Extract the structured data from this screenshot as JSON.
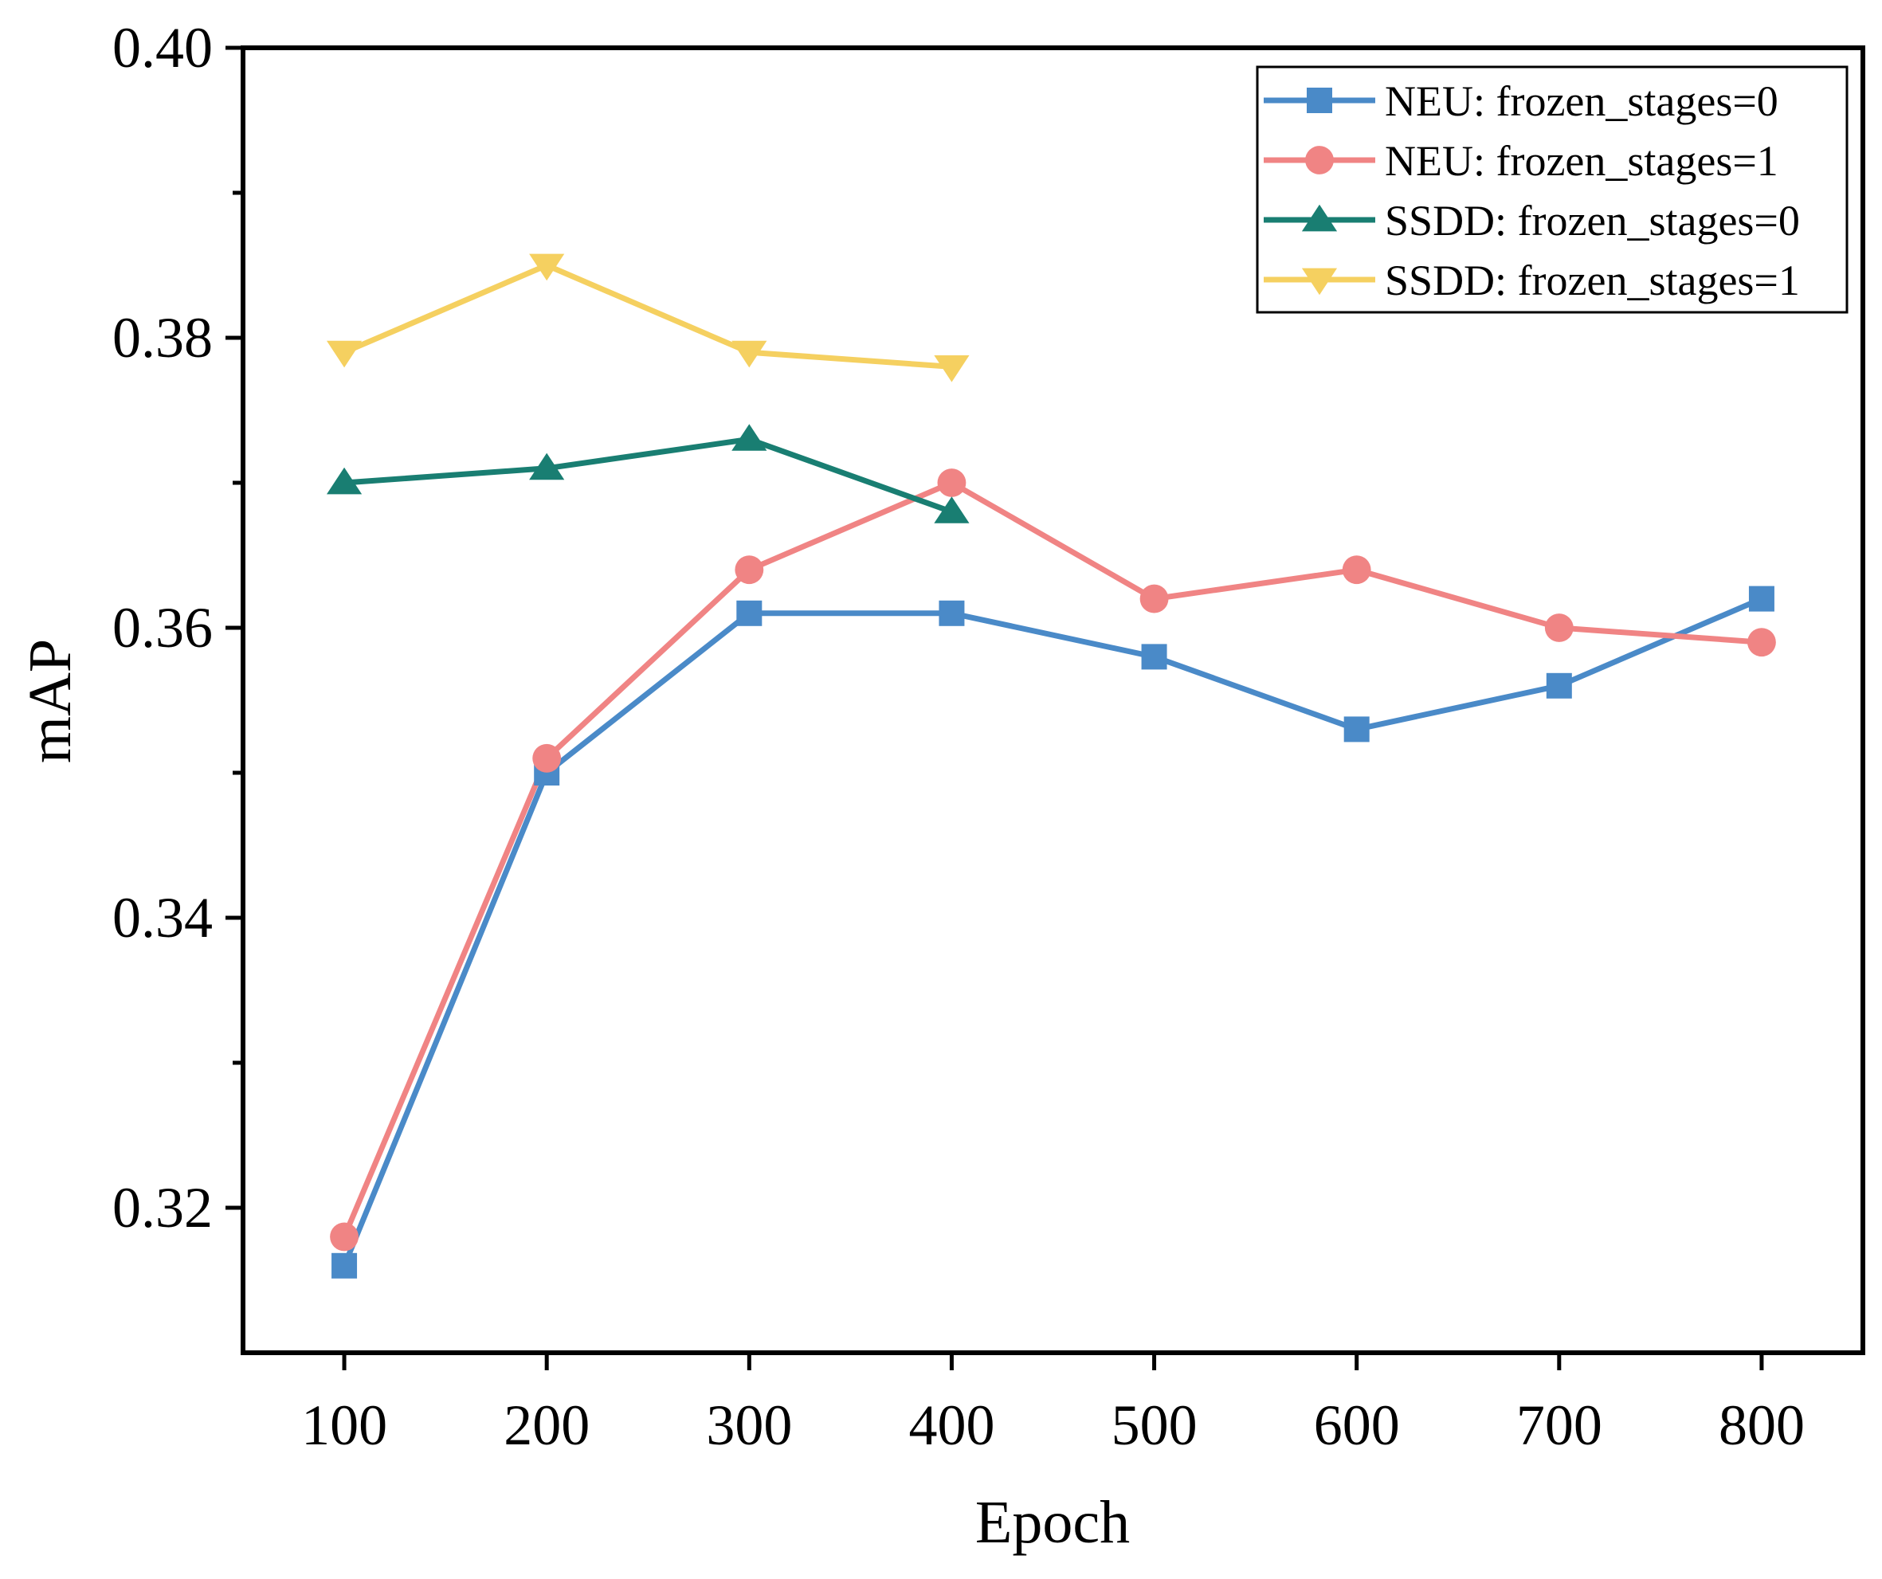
{
  "chart_data": {
    "type": "line",
    "xlabel": "Epoch",
    "ylabel": "mAP",
    "x_ticks": [
      100,
      200,
      300,
      400,
      500,
      600,
      700,
      800
    ],
    "x_tick_labels": [
      "100",
      "200",
      "300",
      "400",
      "500",
      "600",
      "700",
      "800"
    ],
    "y_ticks": [
      0.32,
      0.34,
      0.36,
      0.38,
      0.4
    ],
    "y_tick_labels": [
      "0.32",
      "0.34",
      "0.36",
      "0.38",
      "0.40"
    ],
    "xlim": [
      50,
      850
    ],
    "ylim": [
      0.31,
      0.4
    ],
    "grid": false,
    "legend_position": "top-right",
    "series": [
      {
        "name": "NEU: frozen_stages=0",
        "marker": "square",
        "color": "#4a8ac8",
        "x": [
          100,
          200,
          300,
          400,
          500,
          600,
          700,
          800
        ],
        "y": [
          0.316,
          0.35,
          0.361,
          0.361,
          0.358,
          0.353,
          0.356,
          0.362
        ]
      },
      {
        "name": "NEU: frozen_stages=1",
        "marker": "circle",
        "color": "#f08484",
        "x": [
          100,
          200,
          300,
          400,
          500,
          600,
          700,
          800
        ],
        "y": [
          0.318,
          0.351,
          0.364,
          0.37,
          0.362,
          0.364,
          0.36,
          0.359
        ]
      },
      {
        "name": "SSDD: frozen_stages=0",
        "marker": "triangle-up",
        "color": "#197e72",
        "x": [
          100,
          200,
          300,
          400
        ],
        "y": [
          0.37,
          0.371,
          0.373,
          0.368
        ]
      },
      {
        "name": "SSDD: frozen_stages=1",
        "marker": "triangle-down",
        "color": "#f5d060",
        "x": [
          100,
          200,
          300,
          400
        ],
        "y": [
          0.379,
          0.385,
          0.379,
          0.378
        ]
      }
    ]
  }
}
